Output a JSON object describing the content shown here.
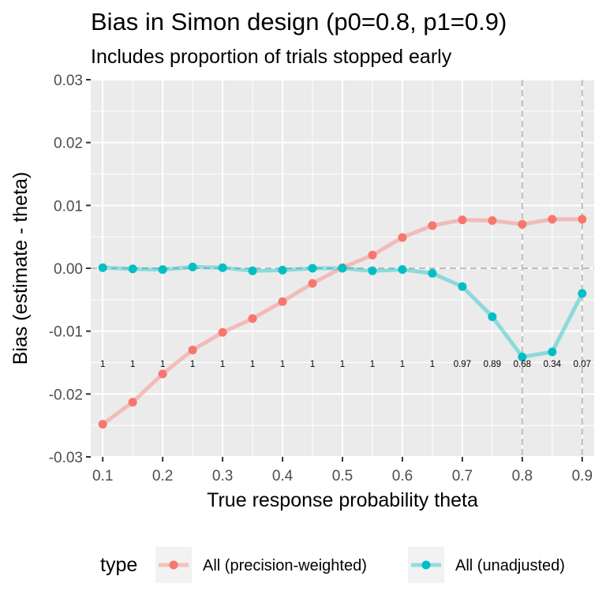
{
  "chart_data": {
    "type": "line",
    "title": "Bias in Simon design (p0=0.8, p1=0.9)",
    "subtitle": "Includes proportion of trials stopped early",
    "xlabel": "True response probability theta",
    "ylabel": "Bias (estimate - theta)",
    "xlim": [
      0.08,
      0.92
    ],
    "ylim": [
      -0.03,
      0.03
    ],
    "x_ticks": [
      "0.1",
      "0.2",
      "0.3",
      "0.4",
      "0.5",
      "0.6",
      "0.7",
      "0.8",
      "0.9"
    ],
    "x_tick_values": [
      0.1,
      0.2,
      0.3,
      0.4,
      0.5,
      0.6,
      0.7,
      0.8,
      0.9
    ],
    "y_ticks": [
      "0.03",
      "0.02",
      "0.01",
      "0.00",
      "-0.01",
      "-0.02",
      "-0.03"
    ],
    "y_tick_values": [
      0.03,
      0.02,
      0.01,
      0.0,
      -0.01,
      -0.02,
      -0.03
    ],
    "grid": true,
    "reference_lines": {
      "horizontal_y": 0.0,
      "vertical_x": [
        0.8,
        0.9
      ]
    },
    "x": [
      0.1,
      0.15,
      0.2,
      0.25,
      0.3,
      0.35,
      0.4,
      0.45,
      0.5,
      0.55,
      0.6,
      0.65,
      0.7,
      0.75,
      0.8,
      0.85,
      0.9
    ],
    "series": [
      {
        "name": "All (precision-weighted)",
        "color": "#F8766D",
        "values": [
          -0.0248,
          -0.0213,
          -0.0168,
          -0.013,
          -0.0102,
          -0.008,
          -0.0053,
          -0.0024,
          0.0001,
          0.0021,
          0.0049,
          0.0068,
          0.0077,
          0.0076,
          0.007,
          0.0078,
          0.0078
        ]
      },
      {
        "name": "All (unadjusted)",
        "color": "#00BFC4",
        "values": [
          0.0001,
          -0.0001,
          -0.0002,
          0.0002,
          0.0001,
          -0.0004,
          -0.0003,
          0.0,
          0.0,
          -0.0004,
          -0.0002,
          -0.0008,
          -0.0029,
          -0.0077,
          -0.0141,
          -0.0133,
          -0.004
        ]
      }
    ],
    "annotations": {
      "label_y": -0.0152,
      "labels": [
        "1",
        "1",
        "1",
        "1",
        "1",
        "1",
        "1",
        "1",
        "1",
        "1",
        "1",
        "1",
        "0.97",
        "0.89",
        "0.68",
        "0.34",
        "0.07"
      ]
    },
    "legend": {
      "position": "bottom",
      "title": "type",
      "items": [
        "All (precision-weighted)",
        "All (unadjusted)"
      ]
    }
  }
}
